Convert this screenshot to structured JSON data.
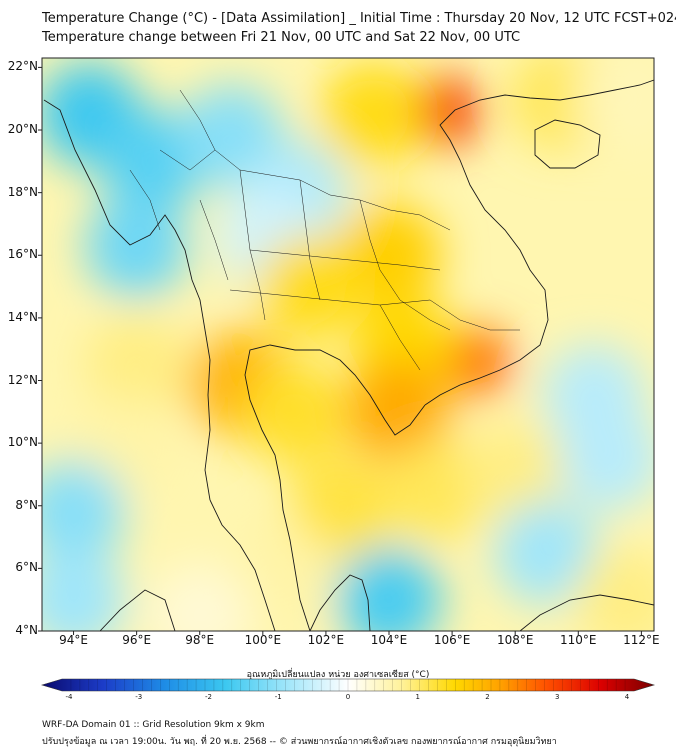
{
  "header": {
    "title_line1": "Temperature Change (°C) - [Data Assimilation] _ Initial Time : Thursday 20 Nov, 12 UTC FCST+024",
    "title_line2": "Temperature change between Fri 21 Nov, 00 UTC and Sat 22 Nov, 00 UTC"
  },
  "map": {
    "lat_labels": [
      "22°N",
      "20°N",
      "18°N",
      "16°N",
      "14°N",
      "12°N",
      "10°N",
      "8°N",
      "6°N",
      "4°N"
    ],
    "lat_values": [
      22,
      20,
      18,
      16,
      14,
      12,
      10,
      8,
      6,
      4
    ],
    "lon_labels": [
      "94°E",
      "96°E",
      "98°E",
      "100°E",
      "102°E",
      "104°E",
      "106°E",
      "108°E",
      "110°E",
      "112°E"
    ],
    "lon_values": [
      94,
      96,
      98,
      100,
      102,
      104,
      106,
      108,
      110,
      112
    ],
    "extent": {
      "lon_min": 93,
      "lon_max": 112.4,
      "lat_min": 4,
      "lat_max": 22.3
    },
    "field_blobs": [
      {
        "lon": 94.5,
        "lat": 20.5,
        "value": -1.6
      },
      {
        "lon": 96.5,
        "lat": 19.0,
        "value": -1.4
      },
      {
        "lon": 99.0,
        "lat": 19.8,
        "value": -1.0
      },
      {
        "lon": 101.0,
        "lat": 18.0,
        "value": -0.7
      },
      {
        "lon": 96.0,
        "lat": 16.3,
        "value": -1.2
      },
      {
        "lon": 100.2,
        "lat": 16.6,
        "value": -0.4
      },
      {
        "lon": 105.8,
        "lat": 20.6,
        "value": 2.8
      },
      {
        "lon": 103.5,
        "lat": 20.5,
        "value": 1.3
      },
      {
        "lon": 109.5,
        "lat": 21.0,
        "value": 1.0
      },
      {
        "lon": 111.5,
        "lat": 21.0,
        "value": 0.5
      },
      {
        "lon": 104.0,
        "lat": 16.0,
        "value": 1.5
      },
      {
        "lon": 101.5,
        "lat": 15.0,
        "value": 1.3
      },
      {
        "lon": 106.8,
        "lat": 12.6,
        "value": 2.4
      },
      {
        "lon": 104.5,
        "lat": 13.0,
        "value": 1.4
      },
      {
        "lon": 99.3,
        "lat": 11.9,
        "value": 1.8
      },
      {
        "lon": 104.3,
        "lat": 11.0,
        "value": 1.9
      },
      {
        "lon": 101.0,
        "lat": 11.0,
        "value": 1.2
      },
      {
        "lon": 96.0,
        "lat": 12.5,
        "value": 0.8
      },
      {
        "lon": 95.5,
        "lat": 9.8,
        "value": 0.6
      },
      {
        "lon": 102.5,
        "lat": 8.0,
        "value": 1.1
      },
      {
        "lon": 105.5,
        "lat": 8.5,
        "value": 1.0
      },
      {
        "lon": 108.0,
        "lat": 9.0,
        "value": 0.8
      },
      {
        "lon": 110.5,
        "lat": 11.5,
        "value": -0.6
      },
      {
        "lon": 111.0,
        "lat": 9.5,
        "value": -0.6
      },
      {
        "lon": 109.0,
        "lat": 6.5,
        "value": -0.8
      },
      {
        "lon": 104.0,
        "lat": 5.0,
        "value": -1.5
      },
      {
        "lon": 100.5,
        "lat": 5.8,
        "value": 0.6
      },
      {
        "lon": 111.5,
        "lat": 5.0,
        "value": 0.8
      },
      {
        "lon": 94.0,
        "lat": 7.8,
        "value": -1.0
      },
      {
        "lon": 94.0,
        "lat": 5.0,
        "value": -0.8
      },
      {
        "lon": 98.0,
        "lat": 4.5,
        "value": 0.3
      }
    ]
  },
  "colorbar": {
    "title": "อุณหภูมิเปลี่ยนแปลง หน่วย องศาเซลเซียส (°C)",
    "min": -4,
    "max": 4,
    "ticks": [
      "-4",
      "-3",
      "-2",
      "-1",
      "0",
      "1",
      "2",
      "3",
      "4"
    ],
    "tick_values": [
      -4,
      -3,
      -2,
      -1,
      0,
      1,
      2,
      3,
      4
    ],
    "stops": [
      {
        "v": -4,
        "color": "#0a0a6e"
      },
      {
        "v": -3.2,
        "color": "#1c3cc8"
      },
      {
        "v": -2.4,
        "color": "#1e8ce6"
      },
      {
        "v": -1.6,
        "color": "#3cc8f0"
      },
      {
        "v": -0.8,
        "color": "#a0e6fa"
      },
      {
        "v": 0,
        "color": "#ffffff"
      },
      {
        "v": 0.7,
        "color": "#fff29a"
      },
      {
        "v": 1.4,
        "color": "#ffd800"
      },
      {
        "v": 2.0,
        "color": "#ffa000"
      },
      {
        "v": 2.6,
        "color": "#ff5000"
      },
      {
        "v": 3.3,
        "color": "#dc0000"
      },
      {
        "v": 4,
        "color": "#7a0000"
      }
    ]
  },
  "footer": {
    "line1": "WRF-DA Domain 01 :: Grid Resolution 9km x 9km",
    "line2": "ปรับปรุงข้อมูล ณ เวลา 19:00น. วัน พฤ. ที่ 20 พ.ย. 2568 -- © ส่วนพยากรณ์อากาศเชิงตัวเลข กองพยากรณ์อากาศ กรมอุตุนิยมวิทยา"
  }
}
